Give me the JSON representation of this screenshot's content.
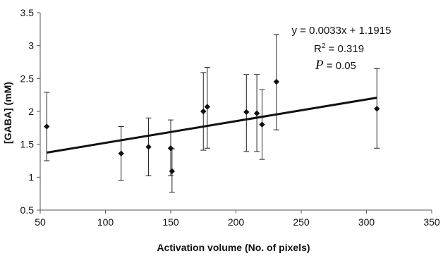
{
  "chart_data": {
    "type": "scatter",
    "xlabel": "Activation volume (No. of pixels)",
    "ylabel": "[GABA] (mM)",
    "xlim": [
      50,
      350
    ],
    "ylim": [
      0.5,
      3.5
    ],
    "x_ticks": [
      50,
      100,
      150,
      200,
      250,
      300,
      350
    ],
    "y_ticks": [
      0.5,
      1,
      1.5,
      2,
      2.5,
      3,
      3.5
    ],
    "grid": false,
    "legend": "none",
    "points": [
      {
        "x": 55,
        "y": 1.77,
        "err_low": 1.25,
        "err_high": 2.29
      },
      {
        "x": 112,
        "y": 1.36,
        "err_low": 0.95,
        "err_high": 1.77
      },
      {
        "x": 133,
        "y": 1.46,
        "err_low": 1.02,
        "err_high": 1.9
      },
      {
        "x": 150,
        "y": 1.44,
        "err_low": 1.02,
        "err_high": 1.87
      },
      {
        "x": 151,
        "y": 1.09,
        "err_low": 0.77,
        "err_high": 1.43
      },
      {
        "x": 175,
        "y": 2.0,
        "err_low": 1.41,
        "err_high": 2.59
      },
      {
        "x": 178,
        "y": 2.07,
        "err_low": 1.44,
        "err_high": 2.67
      },
      {
        "x": 208,
        "y": 1.99,
        "err_low": 1.39,
        "err_high": 2.56
      },
      {
        "x": 216,
        "y": 1.97,
        "err_low": 1.39,
        "err_high": 2.56
      },
      {
        "x": 220,
        "y": 1.8,
        "err_low": 1.27,
        "err_high": 2.33
      },
      {
        "x": 231,
        "y": 2.45,
        "err_low": 1.72,
        "err_high": 3.17
      },
      {
        "x": 308,
        "y": 2.04,
        "err_low": 1.44,
        "err_high": 2.65
      }
    ],
    "trendline": {
      "slope": 0.0033,
      "intercept": 1.1915,
      "x_range": [
        55,
        308
      ]
    },
    "annotations": {
      "equation": "y = 0.0033x + 1.1915",
      "r2_prefix": "R",
      "r2_sup": "2",
      "r2_value": " = 0.319",
      "p_label": "P",
      "p_value": " = 0.05"
    },
    "colors": {
      "marker": "#111111",
      "line": "#111111",
      "axis": "#555555"
    }
  }
}
